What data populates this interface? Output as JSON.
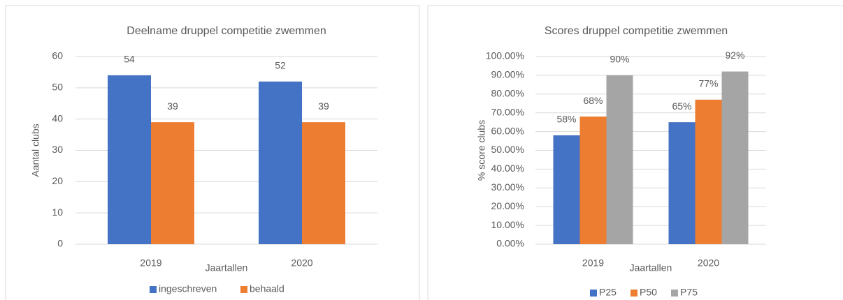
{
  "chart_data": [
    {
      "type": "bar",
      "title": "Deelname druppel competitie zwemmen",
      "x_label": "Jaartallen",
      "y_label": "Aantal clubs",
      "categories": [
        "2019",
        "2020"
      ],
      "series": [
        {
          "name": "ingeschreven",
          "color": "#4472c4",
          "values": [
            54,
            52
          ]
        },
        {
          "name": "behaald",
          "color": "#ed7d31",
          "values": [
            39,
            39
          ]
        }
      ],
      "ylim": [
        0,
        60
      ],
      "yticks": [
        0,
        10,
        20,
        30,
        40,
        50,
        60
      ],
      "grid": true,
      "legend": "bottom"
    },
    {
      "type": "bar",
      "title": "Scores druppel competitie zwemmen",
      "x_label": "Jaartallen",
      "y_label": "% score clubs",
      "categories": [
        "2019",
        "2020"
      ],
      "series": [
        {
          "name": "P25",
          "color": "#4472c4",
          "values": [
            58,
            65
          ],
          "value_labels": [
            "58%",
            "65%"
          ]
        },
        {
          "name": "P50",
          "color": "#ed7d31",
          "values": [
            68,
            77
          ],
          "value_labels": [
            "68%",
            "77%"
          ]
        },
        {
          "name": "P75",
          "color": "#a5a5a5",
          "values": [
            90,
            92
          ],
          "value_labels": [
            "90%",
            "92%"
          ]
        }
      ],
      "ylim": [
        0,
        100
      ],
      "yticks": [
        {
          "value": 0,
          "label": "0.00%"
        },
        {
          "value": 10,
          "label": "10.00%"
        },
        {
          "value": 20,
          "label": "20.00%"
        },
        {
          "value": 30,
          "label": "30.00%"
        },
        {
          "value": 40,
          "label": "40.00%"
        },
        {
          "value": 50,
          "label": "50.00%"
        },
        {
          "value": 60,
          "label": "60.00%"
        },
        {
          "value": 70,
          "label": "70.00%"
        },
        {
          "value": 80,
          "label": "80.00%"
        },
        {
          "value": 90,
          "label": "90.00%"
        },
        {
          "value": 100,
          "label": "100.00%"
        }
      ],
      "grid": true,
      "legend": "bottom"
    }
  ]
}
